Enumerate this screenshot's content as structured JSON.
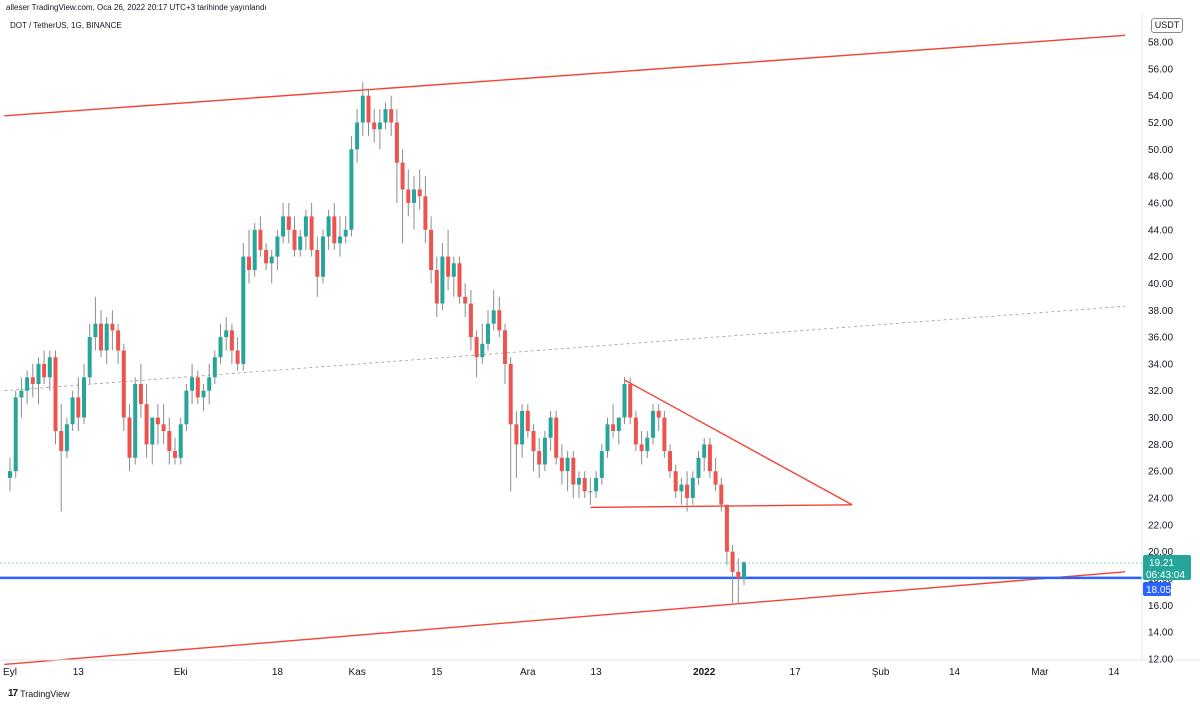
{
  "header": {
    "publish_line": "alleser TradingView.com, Oca 26, 2022 20:17 UTC+3 tarihinde yayınlandı",
    "symbol_line": "DOT / TetherUS, 1G, BINANCE",
    "currency": "USDT"
  },
  "footer": {
    "brand": "TradingView",
    "logo_text": "17"
  },
  "colors": {
    "up": "#26a69a",
    "down": "#ef5350",
    "trend": "#f44336",
    "support": "#2962ff",
    "price_badge": "#26a69a",
    "support_badge": "#2962ff"
  },
  "price_badge": {
    "value": "19.21",
    "countdown": "06:43:04"
  },
  "support_badge": {
    "value": "18.05"
  },
  "chart_data": {
    "type": "candlestick",
    "y_axis": {
      "min": 12,
      "max": 58,
      "ticks": [
        "58.00",
        "56.00",
        "54.00",
        "52.00",
        "50.00",
        "48.00",
        "46.00",
        "44.00",
        "42.00",
        "40.00",
        "38.00",
        "36.00",
        "34.00",
        "32.00",
        "30.00",
        "28.00",
        "26.00",
        "24.00",
        "22.00",
        "20.00",
        "18.00",
        "16.00",
        "14.00",
        "12.00"
      ]
    },
    "x_axis": {
      "labels": [
        {
          "label": "Eyl",
          "day": 0
        },
        {
          "label": "13",
          "day": 12
        },
        {
          "label": "Eki",
          "day": 30
        },
        {
          "label": "18",
          "day": 47
        },
        {
          "label": "Kas",
          "day": 61
        },
        {
          "label": "15",
          "day": 75
        },
        {
          "label": "Ara",
          "day": 91
        },
        {
          "label": "13",
          "day": 103
        },
        {
          "label": "2022",
          "day": 122
        },
        {
          "label": "17",
          "day": 138
        },
        {
          "label": "Şub",
          "day": 153
        },
        {
          "label": "14",
          "day": 166
        },
        {
          "label": "Mar",
          "day": 181
        },
        {
          "label": "14",
          "day": 194
        }
      ]
    },
    "candles_note": "day index from 1 Sep 2021; o/h/l/c in USDT (estimated from chart)",
    "candles": [
      [
        0,
        25.5,
        27,
        24.5,
        26
      ],
      [
        1,
        26,
        32,
        25.5,
        31.5
      ],
      [
        2,
        31.5,
        33,
        30,
        32
      ],
      [
        3,
        32,
        33.5,
        31,
        33
      ],
      [
        4,
        33,
        34,
        31.5,
        32.5
      ],
      [
        5,
        32.5,
        34.5,
        31,
        34
      ],
      [
        6,
        34,
        35,
        32.5,
        33
      ],
      [
        7,
        33,
        35,
        32,
        34.5
      ],
      [
        8,
        34.5,
        35,
        28,
        29
      ],
      [
        9,
        29,
        31,
        23,
        27.5
      ],
      [
        10,
        27.5,
        30,
        27,
        29.5
      ],
      [
        11,
        29.5,
        32,
        29,
        31.5
      ],
      [
        12,
        31.5,
        33,
        29,
        30
      ],
      [
        13,
        30,
        34,
        29.5,
        33
      ],
      [
        14,
        33,
        37,
        32.5,
        36
      ],
      [
        15,
        36,
        39,
        35,
        37
      ],
      [
        16,
        37,
        38,
        34.5,
        35
      ],
      [
        17,
        35,
        37.5,
        34,
        37
      ],
      [
        18,
        37,
        38,
        35,
        36.5
      ],
      [
        19,
        36.5,
        37,
        34,
        35
      ],
      [
        20,
        35,
        35.5,
        29,
        30
      ],
      [
        21,
        30,
        31,
        26,
        27
      ],
      [
        22,
        27,
        33,
        26.5,
        32.5
      ],
      [
        23,
        32.5,
        34,
        30,
        31
      ],
      [
        24,
        31,
        32.5,
        27,
        28
      ],
      [
        25,
        28,
        30,
        26.5,
        30
      ],
      [
        26,
        30,
        31,
        28,
        29.5
      ],
      [
        27,
        29.5,
        31,
        28,
        29
      ],
      [
        28,
        29,
        30,
        26.5,
        27.5
      ],
      [
        29,
        27.5,
        28.5,
        26.5,
        27
      ],
      [
        30,
        27,
        30,
        26.5,
        29.5
      ],
      [
        31,
        29.5,
        32.5,
        29,
        32
      ],
      [
        32,
        32,
        34,
        31,
        33
      ],
      [
        33,
        33,
        33.5,
        31,
        31.5
      ],
      [
        34,
        31.5,
        32.5,
        30.5,
        32
      ],
      [
        35,
        32,
        34,
        31,
        33
      ],
      [
        36,
        33,
        35,
        32.5,
        34.5
      ],
      [
        37,
        34.5,
        37,
        34,
        36
      ],
      [
        38,
        36,
        37.5,
        35,
        36.5
      ],
      [
        39,
        36.5,
        37,
        34,
        35
      ],
      [
        40,
        35,
        36,
        33.5,
        34
      ],
      [
        41,
        34,
        43,
        33.5,
        42
      ],
      [
        42,
        42,
        44,
        40,
        41
      ],
      [
        43,
        41,
        44.5,
        40.5,
        44
      ],
      [
        44,
        44,
        45,
        42,
        42.5
      ],
      [
        45,
        42.5,
        43,
        41,
        41.5
      ],
      [
        46,
        41.5,
        42.5,
        40,
        42
      ],
      [
        47,
        42,
        44,
        41,
        43.5
      ],
      [
        48,
        43.5,
        46,
        43,
        45
      ],
      [
        49,
        45,
        46,
        43,
        44
      ],
      [
        50,
        44,
        45,
        42,
        42.5
      ],
      [
        51,
        42.5,
        44,
        42,
        43.5
      ],
      [
        52,
        43.5,
        45.5,
        42.5,
        45
      ],
      [
        53,
        45,
        46,
        42,
        42.5
      ],
      [
        54,
        42.5,
        43.5,
        39,
        40.5
      ],
      [
        55,
        40.5,
        44,
        40,
        43.5
      ],
      [
        56,
        43.5,
        45.5,
        42.5,
        45
      ],
      [
        57,
        45,
        46,
        42.5,
        43
      ],
      [
        58,
        43,
        45,
        42,
        43.5
      ],
      [
        59,
        43.5,
        45,
        43,
        44
      ],
      [
        60,
        44,
        51,
        43.5,
        50
      ],
      [
        61,
        50,
        53,
        49,
        52
      ],
      [
        62,
        52,
        55,
        51,
        54
      ],
      [
        63,
        54,
        54.5,
        51,
        52
      ],
      [
        64,
        52,
        53,
        50.5,
        51.5
      ],
      [
        65,
        51.5,
        53,
        50,
        52
      ],
      [
        66,
        52,
        53.5,
        51.5,
        53
      ],
      [
        67,
        53,
        54,
        51,
        52
      ],
      [
        68,
        52,
        53,
        46,
        49
      ],
      [
        69,
        49,
        50,
        43,
        47
      ],
      [
        70,
        47,
        48.5,
        45,
        46
      ],
      [
        71,
        46,
        48,
        44,
        47
      ],
      [
        72,
        47,
        48.5,
        45.5,
        46.5
      ],
      [
        73,
        46.5,
        48,
        43,
        44
      ],
      [
        74,
        44,
        45,
        40,
        41
      ],
      [
        75,
        41,
        42,
        37.5,
        38.5
      ],
      [
        76,
        38.5,
        43,
        38,
        42
      ],
      [
        77,
        42,
        44,
        39.5,
        40.5
      ],
      [
        78,
        40.5,
        42,
        39,
        41.5
      ],
      [
        79,
        41.5,
        42,
        38.5,
        39
      ],
      [
        80,
        39,
        40,
        37.5,
        38.5
      ],
      [
        81,
        38.5,
        39.5,
        35,
        36
      ],
      [
        82,
        36,
        36.5,
        33,
        34.5
      ],
      [
        83,
        34.5,
        37,
        34,
        35.5
      ],
      [
        84,
        35.5,
        38,
        35,
        37
      ],
      [
        85,
        37,
        39.5,
        36.5,
        38
      ],
      [
        86,
        38,
        39,
        36,
        36.5
      ],
      [
        87,
        36.5,
        37,
        32.5,
        34
      ],
      [
        88,
        34,
        34.5,
        24.5,
        29.5
      ],
      [
        89,
        29.5,
        30.5,
        25.5,
        28
      ],
      [
        90,
        28,
        31,
        27,
        30.5
      ],
      [
        91,
        30.5,
        31,
        28.5,
        29
      ],
      [
        92,
        29,
        29.5,
        26,
        27.5
      ],
      [
        93,
        27.5,
        28.5,
        25.5,
        26.5
      ],
      [
        94,
        26.5,
        29,
        26,
        28.5
      ],
      [
        95,
        28.5,
        30.5,
        27.5,
        30
      ],
      [
        96,
        30,
        30.5,
        26.5,
        27
      ],
      [
        97,
        27,
        28,
        25,
        26
      ],
      [
        98,
        26,
        27.5,
        24.5,
        27
      ],
      [
        99,
        27,
        27.5,
        24,
        25
      ],
      [
        100,
        25,
        26,
        24,
        25.5
      ],
      [
        101,
        25.5,
        26,
        24,
        24.5
      ],
      [
        102,
        24.5,
        25.5,
        23.5,
        24.5
      ],
      [
        103,
        24.5,
        26,
        24,
        25.5
      ],
      [
        104,
        25.5,
        28,
        25,
        27.5
      ],
      [
        105,
        27.5,
        30,
        27,
        29.5
      ],
      [
        106,
        29.5,
        31,
        28.5,
        29
      ],
      [
        107,
        29,
        30,
        28,
        30
      ],
      [
        108,
        30,
        33,
        29.5,
        32.5
      ],
      [
        109,
        32.5,
        33,
        29.5,
        30
      ],
      [
        110,
        30,
        30.5,
        27.5,
        28
      ],
      [
        111,
        28,
        29,
        26.5,
        27.5
      ],
      [
        112,
        27.5,
        29,
        27,
        28.5
      ],
      [
        113,
        28.5,
        31,
        28,
        30.5
      ],
      [
        114,
        30.5,
        31,
        29,
        30
      ],
      [
        115,
        30,
        30.5,
        27,
        27.5
      ],
      [
        116,
        27.5,
        28,
        25.5,
        26
      ],
      [
        117,
        26,
        26.5,
        24,
        24.5
      ],
      [
        118,
        24.5,
        25.5,
        23.5,
        25
      ],
      [
        119,
        25,
        26,
        23,
        24
      ],
      [
        120,
        24,
        26,
        23.5,
        25.5
      ],
      [
        121,
        25.5,
        27.5,
        25,
        27
      ],
      [
        122,
        27,
        28.5,
        26,
        28
      ],
      [
        123,
        28,
        28.5,
        25.5,
        26
      ],
      [
        124,
        26,
        27,
        24.5,
        25
      ],
      [
        125,
        25,
        25.5,
        23,
        23.5
      ],
      [
        126,
        23.5,
        23.5,
        19,
        20
      ],
      [
        127,
        20,
        20.5,
        16.2,
        18.5
      ],
      [
        128,
        18.5,
        19.5,
        16.1,
        18
      ],
      [
        129,
        18,
        19.3,
        17.5,
        19.2
      ]
    ],
    "lines": [
      {
        "name": "upper-channel",
        "from": [
          -1,
          52.5
        ],
        "to": [
          196,
          58.5
        ]
      },
      {
        "name": "lower-channel",
        "from": [
          -1,
          11.6
        ],
        "to": [
          196,
          18.5
        ]
      },
      {
        "name": "mid-channel-dashed",
        "from": [
          -1,
          32
        ],
        "to": [
          196,
          38.3
        ]
      },
      {
        "name": "triangle-upper",
        "from": [
          108,
          32.8
        ],
        "to": [
          148,
          23.5
        ]
      },
      {
        "name": "triangle-base",
        "from": [
          102,
          23.3
        ],
        "to": [
          148,
          23.5
        ]
      },
      {
        "name": "support",
        "value": 18.05
      }
    ]
  }
}
